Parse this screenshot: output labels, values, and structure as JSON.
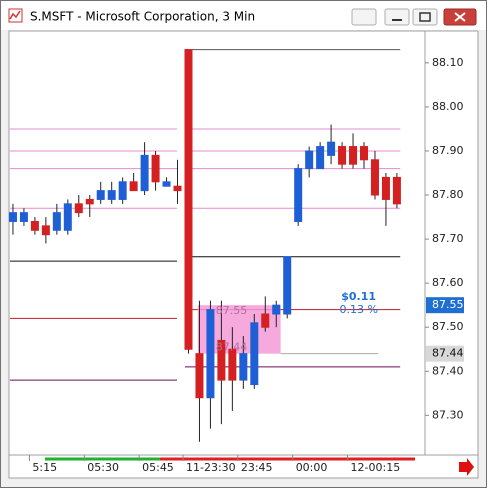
{
  "window": {
    "title": "S.MSFT - Microsoft Corporation, 3 Min"
  },
  "chart_data": {
    "type": "candlestick",
    "up_color": "#1f5fd6",
    "down_color": "#d42020",
    "xlim": [
      -0.27,
      37.56
    ],
    "xticks": [
      {
        "value": 1.5,
        "label": "5:15"
      },
      {
        "value": 6.5,
        "label": "05:30"
      },
      {
        "value": 11.5,
        "label": "05:45"
      },
      {
        "value": 15.5,
        "label": "11-23:30"
      },
      {
        "value": 20.5,
        "label": "23:45"
      },
      {
        "value": 25.5,
        "label": "00:00"
      },
      {
        "value": 30.5,
        "label": "12-00:15"
      }
    ],
    "ylim": [
      87.21,
      88.17
    ],
    "yticks": [
      {
        "value": 88.1,
        "label": "88.10"
      },
      {
        "value": 88.0,
        "label": "88.00"
      },
      {
        "value": 87.9,
        "label": "87.90"
      },
      {
        "value": 87.8,
        "label": "87.80"
      },
      {
        "value": 87.7,
        "label": "87.70"
      },
      {
        "value": 87.6,
        "label": "87.60"
      },
      {
        "value": 87.5,
        "label": "87.50"
      },
      {
        "value": 87.4,
        "label": "87.40"
      },
      {
        "value": 87.3,
        "label": "87.30"
      }
    ],
    "open": [
      87.74,
      87.74,
      87.74,
      87.73,
      87.72,
      87.72,
      87.78,
      87.79,
      87.79,
      87.79,
      87.79,
      87.83,
      87.81,
      87.89,
      87.82,
      87.82,
      88.13,
      87.44,
      87.34,
      87.47,
      87.45,
      87.38,
      87.37,
      87.53,
      87.53,
      87.53,
      87.74,
      87.86,
      87.86,
      87.89,
      87.91,
      87.91,
      87.91,
      87.88,
      87.84,
      87.84
    ],
    "high": [
      87.78,
      87.77,
      87.75,
      87.75,
      87.78,
      87.79,
      87.8,
      87.8,
      87.83,
      87.83,
      87.84,
      87.85,
      87.92,
      87.9,
      87.84,
      87.88,
      88.13,
      87.56,
      87.56,
      87.56,
      87.5,
      87.48,
      87.53,
      87.57,
      87.56,
      87.66,
      87.87,
      87.91,
      87.92,
      87.96,
      87.92,
      87.94,
      87.92,
      87.9,
      87.85,
      87.85
    ],
    "low": [
      87.71,
      87.73,
      87.71,
      87.69,
      87.71,
      87.71,
      87.75,
      87.75,
      87.78,
      87.78,
      87.78,
      87.81,
      87.8,
      87.81,
      87.82,
      87.78,
      87.44,
      87.24,
      87.27,
      87.28,
      87.31,
      87.36,
      87.36,
      87.49,
      87.5,
      87.52,
      87.73,
      87.84,
      87.86,
      87.87,
      87.86,
      87.86,
      87.86,
      87.79,
      87.73,
      87.77
    ],
    "close": [
      87.76,
      87.76,
      87.72,
      87.71,
      87.76,
      87.78,
      87.76,
      87.78,
      87.81,
      87.81,
      87.83,
      87.81,
      87.89,
      87.83,
      87.83,
      87.81,
      87.45,
      87.34,
      87.54,
      87.38,
      87.38,
      87.44,
      87.51,
      87.5,
      87.55,
      87.66,
      87.86,
      87.9,
      87.91,
      87.92,
      87.87,
      87.87,
      87.88,
      87.8,
      87.79,
      87.78
    ],
    "levels": [
      {
        "color": "#555555",
        "values": [
          null,
          88.13
        ]
      },
      {
        "color": "#e58ad0",
        "values": [
          87.95,
          87.95
        ]
      },
      {
        "color": "#e58ad0",
        "values": [
          87.9,
          87.9
        ]
      },
      {
        "color": "#e58ad0",
        "values": [
          87.86,
          87.86
        ]
      },
      {
        "color": "#e58ad0",
        "values": [
          87.77,
          87.77
        ]
      },
      {
        "color": "#111111",
        "values": [
          87.65,
          87.66
        ]
      },
      {
        "color": "#c0182a",
        "values": [
          87.52,
          87.54
        ]
      },
      {
        "color": "#6a0a5a",
        "values": [
          87.38,
          87.41
        ]
      }
    ],
    "measure": {
      "high": 87.55,
      "low": 87.44,
      "high_label": "87.55",
      "low_label": "87.44",
      "change": "$0.11",
      "percent": "0.13 %",
      "color": "#f49ad6"
    },
    "price_tags": [
      {
        "value": 87.55,
        "label": "87.55",
        "color": "#1e6fd0"
      },
      {
        "value": 87.44,
        "label": "87.44",
        "color": "#d8d8d8"
      }
    ]
  }
}
